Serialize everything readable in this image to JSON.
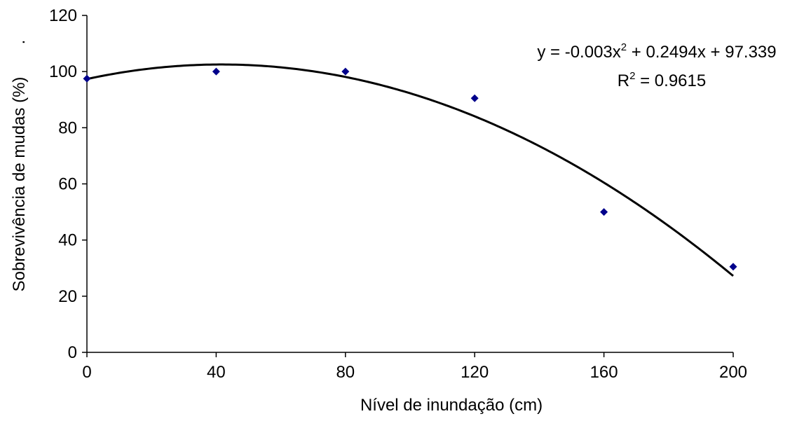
{
  "chart_data": {
    "type": "scatter",
    "xlabel": "Nível de inundação (cm)",
    "ylabel": "Sobrevivência de mudas (%)",
    "ylabel_suffix": ".",
    "xlim": [
      0,
      200
    ],
    "ylim": [
      0,
      120
    ],
    "xticks": [
      0,
      40,
      80,
      120,
      160,
      200
    ],
    "yticks": [
      0,
      20,
      40,
      60,
      80,
      100,
      120
    ],
    "grid": false,
    "series": [
      {
        "marker": "diamond",
        "color": "#00008b",
        "points": [
          {
            "x": 0,
            "y": 97.5
          },
          {
            "x": 40,
            "y": 100
          },
          {
            "x": 80,
            "y": 100
          },
          {
            "x": 120,
            "y": 90.5
          },
          {
            "x": 160,
            "y": 50
          },
          {
            "x": 200,
            "y": 30.5
          }
        ]
      }
    ],
    "trendline": {
      "type": "polynomial",
      "coefficients": {
        "a": -0.003,
        "b": 0.2494,
        "c": 97.339
      },
      "x_range": [
        0,
        200
      ],
      "color": "#000000",
      "equation_label": {
        "prefix": "y = -0.003x",
        "superscript": "2",
        "suffix": " + 0.2494x + 97.339"
      },
      "r2_label": {
        "prefix": "R",
        "superscript": "2",
        "suffix": " = 0.9615"
      }
    }
  }
}
